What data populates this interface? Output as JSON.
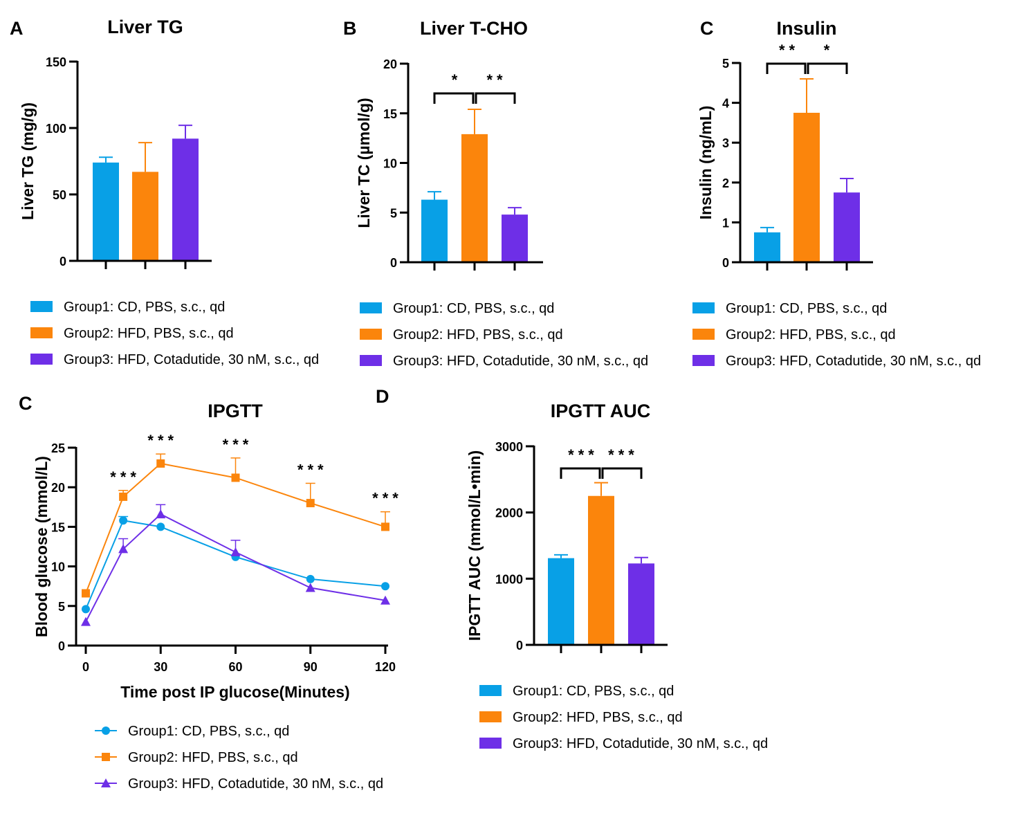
{
  "colors": {
    "group1": "#08a0e6",
    "group2": "#fb850c",
    "group3": "#6e2fe7"
  },
  "legend_labels": [
    "Group1: CD, PBS, s.c., qd",
    "Group2: HFD, PBS, s.c., qd",
    "Group3: HFD, Cotadutide, 30 nM, s.c., qd"
  ],
  "chart_data": [
    {
      "panel": "A",
      "type": "bar",
      "title": "Liver TG",
      "ylabel": "Liver TG (mg/g)",
      "ylim": [
        0,
        150
      ],
      "yticks": [
        0,
        50,
        100,
        150
      ],
      "categories": [
        "Group1",
        "Group2",
        "Group3"
      ],
      "values": [
        74,
        67,
        92
      ],
      "errors": [
        4,
        22,
        10
      ],
      "significance": [],
      "legend_placement": "bottom"
    },
    {
      "panel": "B",
      "type": "bar",
      "title": "Liver T-CHO",
      "ylabel": "Liver TC (µmol/g)",
      "ylim": [
        0,
        20
      ],
      "yticks": [
        0,
        5,
        10,
        15,
        20
      ],
      "categories": [
        "Group1",
        "Group2",
        "Group3"
      ],
      "values": [
        6.3,
        12.9,
        4.8
      ],
      "errors": [
        0.8,
        2.5,
        0.7
      ],
      "significance": [
        {
          "from": 0,
          "to": 1,
          "text": "*"
        },
        {
          "from": 1,
          "to": 2,
          "text": "**"
        }
      ],
      "legend_placement": "bottom"
    },
    {
      "panel": "C",
      "type": "bar",
      "title": "Insulin",
      "ylabel": "Insulin (ng/mL)",
      "ylim": [
        0,
        5
      ],
      "yticks": [
        0,
        1,
        2,
        3,
        4,
        5
      ],
      "categories": [
        "Group1",
        "Group2",
        "Group3"
      ],
      "values": [
        0.75,
        3.75,
        1.75
      ],
      "errors": [
        0.12,
        0.85,
        0.35
      ],
      "significance": [
        {
          "from": 0,
          "to": 1,
          "text": "**"
        },
        {
          "from": 1,
          "to": 2,
          "text": "*"
        }
      ],
      "legend_placement": "bottom"
    },
    {
      "panel": "C",
      "type": "line",
      "title": "IPGTT",
      "xlabel": "Time post IP glucose(Minutes)",
      "ylabel": "Blood glucose (mmol/L)",
      "xlim": [
        0,
        120
      ],
      "ylim": [
        0,
        25
      ],
      "xticks": [
        0,
        30,
        60,
        90,
        120
      ],
      "yticks": [
        0,
        5,
        10,
        15,
        20,
        25
      ],
      "x": [
        0,
        15,
        30,
        60,
        90,
        120
      ],
      "series": [
        {
          "group": 0,
          "marker": "circle",
          "values": [
            4.6,
            15.8,
            15.0,
            11.2,
            8.4,
            7.5
          ],
          "errors": [
            0,
            0.5,
            0,
            0,
            0,
            0
          ]
        },
        {
          "group": 1,
          "marker": "square",
          "values": [
            6.6,
            18.8,
            23.0,
            21.2,
            18.0,
            15.0
          ],
          "errors": [
            0,
            0.8,
            1.2,
            2.5,
            2.5,
            1.9
          ]
        },
        {
          "group": 2,
          "marker": "triangle",
          "values": [
            3.0,
            12.2,
            16.6,
            11.8,
            7.3,
            5.7
          ],
          "errors": [
            0,
            1.3,
            1.2,
            1.5,
            0,
            0
          ]
        }
      ],
      "annotations": [
        {
          "x": 15,
          "text": "***"
        },
        {
          "x": 30,
          "text": "***"
        },
        {
          "x": 60,
          "text": "***"
        },
        {
          "x": 90,
          "text": "***"
        },
        {
          "x": 120,
          "text": "***"
        }
      ],
      "legend_placement": "bottom"
    },
    {
      "panel": "D",
      "type": "bar",
      "title": "IPGTT AUC",
      "ylabel": "IPGTT AUC (mmol/L•min)",
      "ylim": [
        0,
        3000
      ],
      "yticks": [
        0,
        1000,
        2000,
        3000
      ],
      "categories": [
        "Group1",
        "Group2",
        "Group3"
      ],
      "values": [
        1310,
        2250,
        1230
      ],
      "errors": [
        50,
        200,
        90
      ],
      "significance": [
        {
          "from": 0,
          "to": 1,
          "text": "***"
        },
        {
          "from": 1,
          "to": 2,
          "text": "***"
        }
      ],
      "legend_placement": "bottom"
    }
  ]
}
